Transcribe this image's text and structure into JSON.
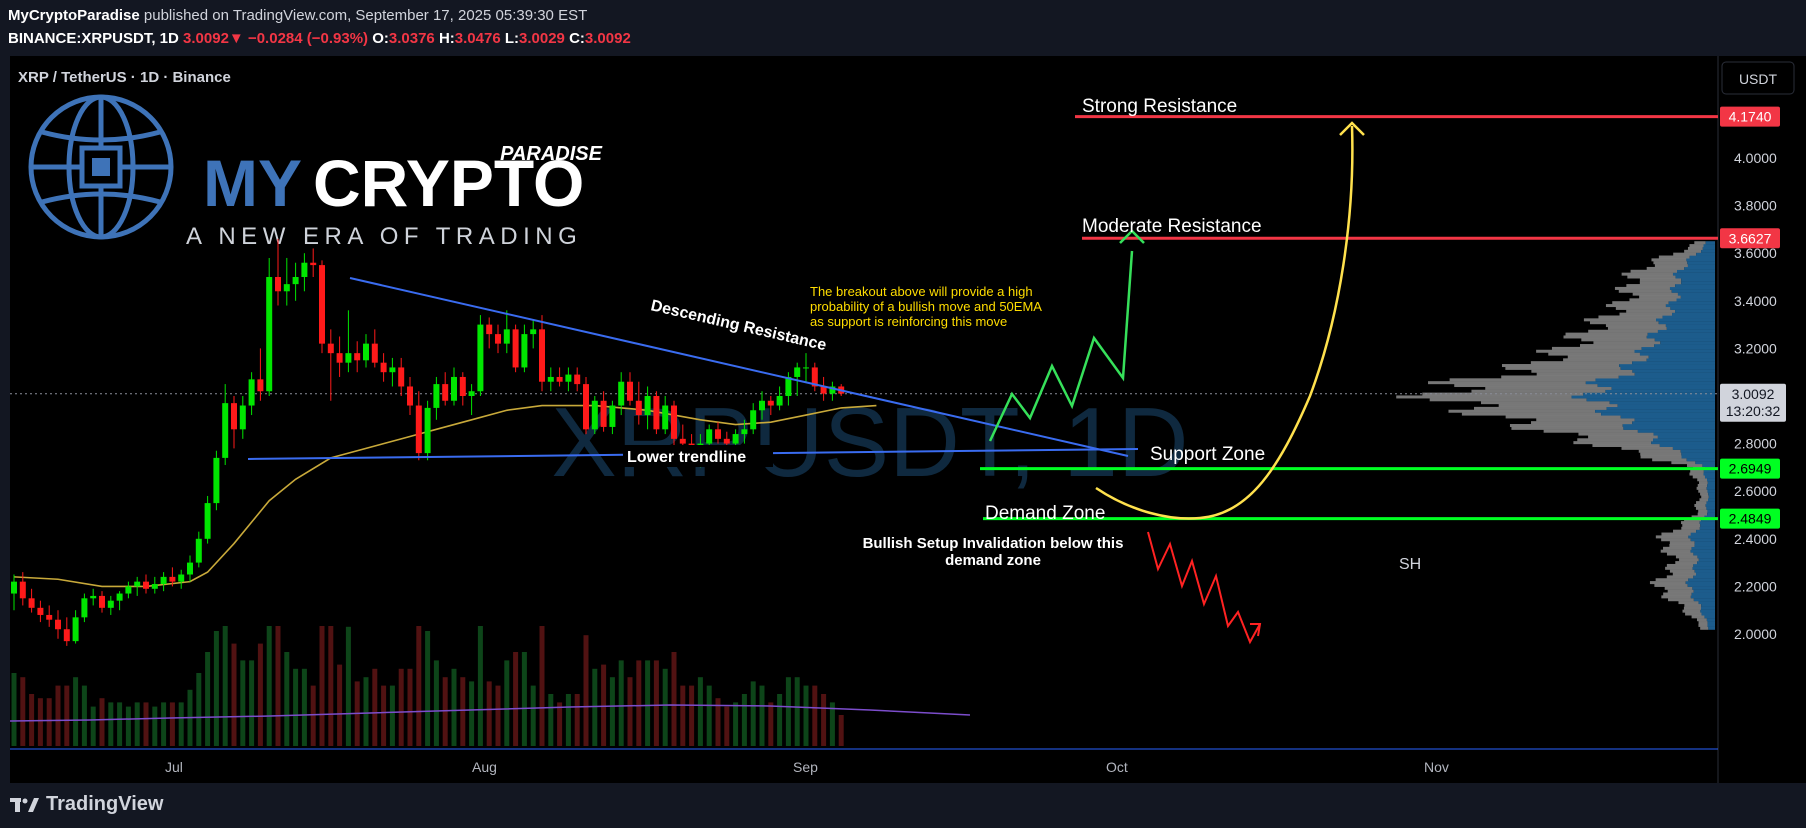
{
  "header": {
    "publisher": "MyCryptoParadise",
    "published_text": "published on TradingView.com, September 17, 2025 05:39:30 EST",
    "symbol": "BINANCE:XRPUSDT, 1D",
    "last": "3.0092",
    "change": "−0.0284 (−0.93%)",
    "o_label": "O:",
    "open": "3.0376",
    "h_label": "H:",
    "high": "3.0476",
    "l_label": "L:",
    "low": "3.0029",
    "c_label": "C:",
    "close": "3.0092"
  },
  "chart_title": "XRP / TetherUS · 1D · Binance",
  "watermark": "XRPUSDT, 1D",
  "logo": {
    "line1": "MYCRYPTO",
    "line1_my": "MY",
    "line1_crypto": "CRYPTO",
    "paradise": "PARADISE",
    "tagline": "A NEW ERA OF TRADING"
  },
  "currency_button": "USDT",
  "price_badges": {
    "last": "3.0092",
    "countdown": "13:20:32",
    "strong": "4.1740",
    "moderate": "3.6627",
    "support": "2.6949",
    "demand": "2.4849"
  },
  "annotations": {
    "strong_resistance": "Strong Resistance",
    "moderate_resistance": "Moderate Resistance",
    "support_zone": "Support Zone",
    "demand_zone": "Demand Zone",
    "descending_resistance": "Descending Resistance",
    "lower_trendline": "Lower trendline",
    "breakout_note": [
      "The breakout above will provide a high",
      "probability of  a bullish move and 50EMA",
      "as support is reinforcing this move"
    ],
    "invalidation_note": [
      "Bullish Setup Invalidation below this",
      "demand zone"
    ],
    "sh": "SH"
  },
  "colors": {
    "background": "#000000",
    "bull": "#00e600",
    "bear": "#ff1a1a",
    "ema": "#c8a93a",
    "trendline": "#3a6cf0",
    "level_red": "#f23645",
    "level_green": "#00ff22",
    "note_yellow": "#ffdd00",
    "vp_blue": "#1c5c8c",
    "vp_gray": "#8c8c8c"
  },
  "footer": {
    "brand": "TradingView"
  },
  "chart_data": {
    "type": "candlestick",
    "symbol": "XRPUSDT",
    "interval": "1D",
    "x_tick_labels": [
      "Jul",
      "Aug",
      "Sep",
      "Oct",
      "Nov"
    ],
    "y_tick_labels": [
      "2.0000",
      "2.2000",
      "2.4000",
      "2.6000",
      "2.8000",
      "3.2000",
      "3.4000",
      "3.6000",
      "3.8000",
      "4.0000"
    ],
    "y_ticks": [
      2.0,
      2.2,
      2.4,
      2.6,
      2.8,
      3.2,
      3.4,
      3.6,
      3.8,
      4.0
    ],
    "ylim": [
      1.95,
      4.3
    ],
    "start_date": "2025-06-18",
    "candles": [
      {
        "o": 2.17,
        "h": 2.25,
        "l": 2.1,
        "c": 2.22
      },
      {
        "o": 2.22,
        "h": 2.26,
        "l": 2.12,
        "c": 2.15
      },
      {
        "o": 2.15,
        "h": 2.19,
        "l": 2.09,
        "c": 2.11
      },
      {
        "o": 2.11,
        "h": 2.14,
        "l": 2.05,
        "c": 2.08
      },
      {
        "o": 2.08,
        "h": 2.12,
        "l": 2.03,
        "c": 2.06
      },
      {
        "o": 2.06,
        "h": 2.1,
        "l": 1.98,
        "c": 2.02
      },
      {
        "o": 2.02,
        "h": 2.07,
        "l": 1.95,
        "c": 1.97
      },
      {
        "o": 1.97,
        "h": 2.1,
        "l": 1.96,
        "c": 2.07
      },
      {
        "o": 2.07,
        "h": 2.17,
        "l": 2.05,
        "c": 2.15
      },
      {
        "o": 2.15,
        "h": 2.19,
        "l": 2.12,
        "c": 2.16
      },
      {
        "o": 2.16,
        "h": 2.18,
        "l": 2.09,
        "c": 2.11
      },
      {
        "o": 2.11,
        "h": 2.16,
        "l": 2.08,
        "c": 2.14
      },
      {
        "o": 2.14,
        "h": 2.18,
        "l": 2.1,
        "c": 2.17
      },
      {
        "o": 2.17,
        "h": 2.22,
        "l": 2.15,
        "c": 2.2
      },
      {
        "o": 2.2,
        "h": 2.24,
        "l": 2.16,
        "c": 2.22
      },
      {
        "o": 2.22,
        "h": 2.25,
        "l": 2.17,
        "c": 2.19
      },
      {
        "o": 2.19,
        "h": 2.24,
        "l": 2.17,
        "c": 2.21
      },
      {
        "o": 2.21,
        "h": 2.26,
        "l": 2.18,
        "c": 2.24
      },
      {
        "o": 2.24,
        "h": 2.28,
        "l": 2.2,
        "c": 2.22
      },
      {
        "o": 2.22,
        "h": 2.27,
        "l": 2.19,
        "c": 2.25
      },
      {
        "o": 2.25,
        "h": 2.33,
        "l": 2.22,
        "c": 2.3
      },
      {
        "o": 2.3,
        "h": 2.43,
        "l": 2.28,
        "c": 2.4
      },
      {
        "o": 2.4,
        "h": 2.58,
        "l": 2.38,
        "c": 2.55
      },
      {
        "o": 2.55,
        "h": 2.77,
        "l": 2.52,
        "c": 2.74
      },
      {
        "o": 2.74,
        "h": 3.05,
        "l": 2.71,
        "c": 2.97
      },
      {
        "o": 2.97,
        "h": 3.0,
        "l": 2.78,
        "c": 2.86
      },
      {
        "o": 2.86,
        "h": 3.0,
        "l": 2.82,
        "c": 2.96
      },
      {
        "o": 2.96,
        "h": 3.1,
        "l": 2.92,
        "c": 3.07
      },
      {
        "o": 3.07,
        "h": 3.2,
        "l": 2.98,
        "c": 3.02
      },
      {
        "o": 3.02,
        "h": 3.58,
        "l": 3.0,
        "c": 3.5
      },
      {
        "o": 3.5,
        "h": 3.66,
        "l": 3.38,
        "c": 3.44
      },
      {
        "o": 3.44,
        "h": 3.58,
        "l": 3.38,
        "c": 3.47
      },
      {
        "o": 3.47,
        "h": 3.56,
        "l": 3.4,
        "c": 3.5
      },
      {
        "o": 3.5,
        "h": 3.6,
        "l": 3.44,
        "c": 3.56
      },
      {
        "o": 3.56,
        "h": 3.62,
        "l": 3.5,
        "c": 3.55
      },
      {
        "o": 3.55,
        "h": 3.57,
        "l": 3.18,
        "c": 3.22
      },
      {
        "o": 3.22,
        "h": 3.28,
        "l": 2.98,
        "c": 3.18
      },
      {
        "o": 3.18,
        "h": 3.25,
        "l": 3.08,
        "c": 3.14
      },
      {
        "o": 3.14,
        "h": 3.36,
        "l": 3.1,
        "c": 3.18
      },
      {
        "o": 3.18,
        "h": 3.23,
        "l": 3.1,
        "c": 3.15
      },
      {
        "o": 3.15,
        "h": 3.26,
        "l": 3.12,
        "c": 3.22
      },
      {
        "o": 3.22,
        "h": 3.28,
        "l": 3.12,
        "c": 3.14
      },
      {
        "o": 3.14,
        "h": 3.18,
        "l": 3.06,
        "c": 3.1
      },
      {
        "o": 3.1,
        "h": 3.16,
        "l": 3.04,
        "c": 3.12
      },
      {
        "o": 3.12,
        "h": 3.16,
        "l": 3.0,
        "c": 3.04
      },
      {
        "o": 3.04,
        "h": 3.08,
        "l": 2.92,
        "c": 2.96
      },
      {
        "o": 2.96,
        "h": 3.02,
        "l": 2.73,
        "c": 2.76
      },
      {
        "o": 2.76,
        "h": 2.98,
        "l": 2.73,
        "c": 2.95
      },
      {
        "o": 2.95,
        "h": 3.08,
        "l": 2.9,
        "c": 3.05
      },
      {
        "o": 3.05,
        "h": 3.1,
        "l": 2.96,
        "c": 2.98
      },
      {
        "o": 2.98,
        "h": 3.12,
        "l": 2.96,
        "c": 3.08
      },
      {
        "o": 3.08,
        "h": 3.1,
        "l": 2.96,
        "c": 3.0
      },
      {
        "o": 3.0,
        "h": 3.05,
        "l": 2.92,
        "c": 3.02
      },
      {
        "o": 3.02,
        "h": 3.34,
        "l": 3.0,
        "c": 3.3
      },
      {
        "o": 3.3,
        "h": 3.33,
        "l": 3.2,
        "c": 3.26
      },
      {
        "o": 3.26,
        "h": 3.3,
        "l": 3.18,
        "c": 3.22
      },
      {
        "o": 3.22,
        "h": 3.36,
        "l": 3.18,
        "c": 3.28
      },
      {
        "o": 3.28,
        "h": 3.3,
        "l": 3.1,
        "c": 3.12
      },
      {
        "o": 3.12,
        "h": 3.3,
        "l": 3.1,
        "c": 3.26
      },
      {
        "o": 3.26,
        "h": 3.32,
        "l": 3.2,
        "c": 3.28
      },
      {
        "o": 3.28,
        "h": 3.34,
        "l": 3.02,
        "c": 3.06
      },
      {
        "o": 3.06,
        "h": 3.12,
        "l": 3.02,
        "c": 3.08
      },
      {
        "o": 3.08,
        "h": 3.12,
        "l": 3.04,
        "c": 3.06
      },
      {
        "o": 3.06,
        "h": 3.12,
        "l": 3.02,
        "c": 3.09
      },
      {
        "o": 3.09,
        "h": 3.12,
        "l": 3.02,
        "c": 3.05
      },
      {
        "o": 3.05,
        "h": 3.08,
        "l": 2.84,
        "c": 2.86
      },
      {
        "o": 2.86,
        "h": 3.0,
        "l": 2.84,
        "c": 2.98
      },
      {
        "o": 2.98,
        "h": 3.02,
        "l": 2.85,
        "c": 2.87
      },
      {
        "o": 2.87,
        "h": 2.98,
        "l": 2.84,
        "c": 2.96
      },
      {
        "o": 2.96,
        "h": 3.1,
        "l": 2.92,
        "c": 3.06
      },
      {
        "o": 3.06,
        "h": 3.1,
        "l": 2.96,
        "c": 2.98
      },
      {
        "o": 2.98,
        "h": 3.06,
        "l": 2.88,
        "c": 2.92
      },
      {
        "o": 2.92,
        "h": 3.04,
        "l": 2.86,
        "c": 3.0
      },
      {
        "o": 3.0,
        "h": 3.02,
        "l": 2.84,
        "c": 2.86
      },
      {
        "o": 2.86,
        "h": 3.0,
        "l": 2.84,
        "c": 2.96
      },
      {
        "o": 2.96,
        "h": 2.98,
        "l": 2.78,
        "c": 2.82
      },
      {
        "o": 2.82,
        "h": 2.88,
        "l": 2.76,
        "c": 2.8
      },
      {
        "o": 2.8,
        "h": 2.84,
        "l": 2.72,
        "c": 2.76
      },
      {
        "o": 2.76,
        "h": 2.84,
        "l": 2.7,
        "c": 2.8
      },
      {
        "o": 2.8,
        "h": 2.88,
        "l": 2.76,
        "c": 2.86
      },
      {
        "o": 2.86,
        "h": 2.89,
        "l": 2.8,
        "c": 2.82
      },
      {
        "o": 2.82,
        "h": 2.85,
        "l": 2.78,
        "c": 2.8
      },
      {
        "o": 2.8,
        "h": 2.86,
        "l": 2.78,
        "c": 2.84
      },
      {
        "o": 2.84,
        "h": 2.9,
        "l": 2.8,
        "c": 2.86
      },
      {
        "o": 2.86,
        "h": 2.97,
        "l": 2.84,
        "c": 2.94
      },
      {
        "o": 2.94,
        "h": 3.02,
        "l": 2.9,
        "c": 2.98
      },
      {
        "o": 2.98,
        "h": 3.0,
        "l": 2.92,
        "c": 2.96
      },
      {
        "o": 2.96,
        "h": 3.04,
        "l": 2.94,
        "c": 3.0
      },
      {
        "o": 3.0,
        "h": 3.1,
        "l": 2.96,
        "c": 3.08
      },
      {
        "o": 3.08,
        "h": 3.14,
        "l": 3.0,
        "c": 3.12
      },
      {
        "o": 3.12,
        "h": 3.18,
        "l": 3.06,
        "c": 3.12
      },
      {
        "o": 3.12,
        "h": 3.14,
        "l": 3.02,
        "c": 3.04
      },
      {
        "o": 3.04,
        "h": 3.08,
        "l": 2.98,
        "c": 3.01
      },
      {
        "o": 3.01,
        "h": 3.06,
        "l": 2.98,
        "c": 3.04
      },
      {
        "o": 3.04,
        "h": 3.05,
        "l": 3.0,
        "c": 3.01
      }
    ],
    "ema50": [
      [
        0,
        2.24
      ],
      [
        5,
        2.23
      ],
      [
        10,
        2.2
      ],
      [
        15,
        2.2
      ],
      [
        20,
        2.22
      ],
      [
        22,
        2.26
      ],
      [
        25,
        2.38
      ],
      [
        29,
        2.56
      ],
      [
        32,
        2.65
      ],
      [
        36,
        2.74
      ],
      [
        40,
        2.78
      ],
      [
        44,
        2.82
      ],
      [
        48,
        2.86
      ],
      [
        52,
        2.9
      ],
      [
        56,
        2.94
      ],
      [
        60,
        2.96
      ],
      [
        66,
        2.96
      ],
      [
        72,
        2.94
      ],
      [
        78,
        2.9
      ],
      [
        82,
        2.88
      ],
      [
        86,
        2.89
      ],
      [
        90,
        2.92
      ],
      [
        94,
        2.95
      ],
      [
        98,
        2.96
      ]
    ],
    "levels": {
      "strong_resistance": 4.174,
      "moderate_resistance": 3.6627,
      "support": 2.6949,
      "demand": 2.4849,
      "last": 3.0092
    }
  }
}
